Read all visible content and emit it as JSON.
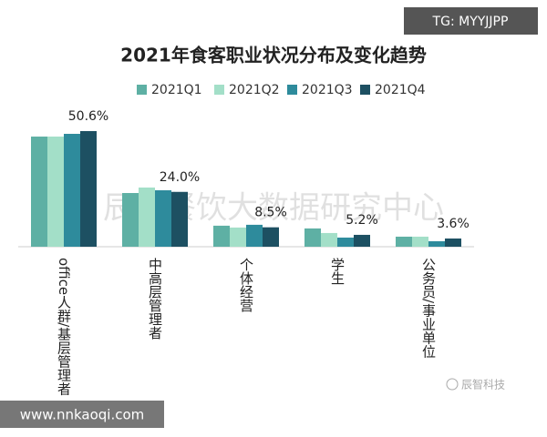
{
  "chart_data": {
    "type": "bar",
    "title": "2021年食客职业状况分布及变化趋势",
    "categories": [
      "office人群/基层管理者",
      "中高层管理者",
      "个体经营",
      "学生",
      "公务员/事业单位"
    ],
    "series": [
      {
        "name": "2021Q1",
        "color": "#5eb0a4",
        "values": [
          48.2,
          23.5,
          9.2,
          8.0,
          4.4
        ]
      },
      {
        "name": "2021Q2",
        "color": "#a3dfc8",
        "values": [
          48.2,
          25.9,
          8.4,
          6.0,
          4.4
        ]
      },
      {
        "name": "2021Q3",
        "color": "#2e8b9c",
        "values": [
          49.4,
          24.7,
          9.6,
          4.0,
          2.4
        ]
      },
      {
        "name": "2021Q4",
        "color": "#1d5062",
        "values": [
          50.6,
          24.0,
          8.5,
          5.2,
          3.6
        ],
        "value_labels": [
          "50.6%",
          "24.0%",
          "8.5%",
          "5.2%",
          "3.6%"
        ]
      }
    ],
    "legend": "top",
    "grid": false
  },
  "overlays": {
    "watermark": "辰智餐饮大数据研究中心",
    "badge": "TG: MYYJJPP",
    "site": "www.nnkaoqi.com",
    "brand": "辰智科技"
  }
}
